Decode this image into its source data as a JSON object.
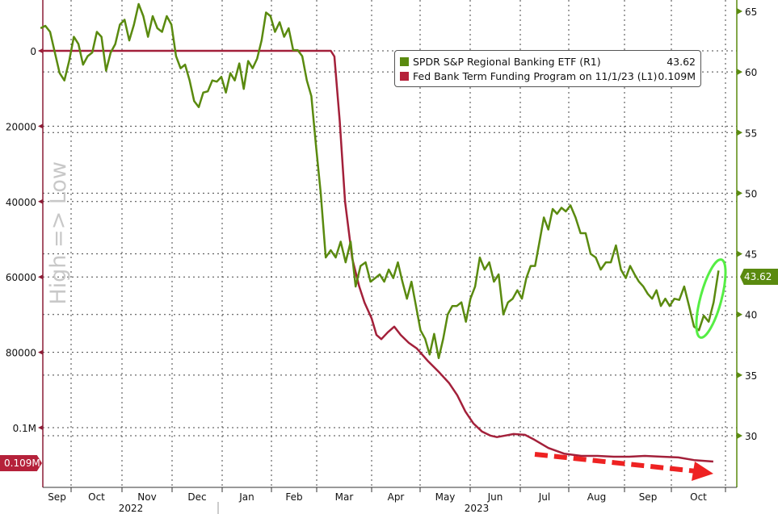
{
  "colors": {
    "etf": "#5a8a0f",
    "btfp": "#a3203a",
    "axis_left": "#8c1d36",
    "axis_right": "#5a8a0f",
    "highlight": "#55ee44",
    "arrow": "#ee2222"
  },
  "legend": [
    {
      "label": "SPDR S&P Regional Banking ETF (R1)",
      "value": "43.62"
    },
    {
      "label": "Fed Bank Term Funding Program on 11/1/23 (L1)",
      "value": "0.109M"
    }
  ],
  "annotation_label": "High => Low",
  "chart_data": {
    "type": "line",
    "title": "",
    "x_months": [
      "Sep",
      "Oct",
      "Nov",
      "Dec",
      "Jan",
      "Feb",
      "Mar",
      "Apr",
      "May",
      "Jun",
      "Jul",
      "Aug",
      "Sep",
      "Oct"
    ],
    "x_years": [
      "2022",
      "2023"
    ],
    "left_axis": {
      "inverted": true,
      "ylim": [
        -12000,
        116000
      ],
      "ticks": [
        {
          "v": 0,
          "label": "0"
        },
        {
          "v": 20000,
          "label": "20000"
        },
        {
          "v": 40000,
          "label": "40000"
        },
        {
          "v": 60000,
          "label": "60000"
        },
        {
          "v": 80000,
          "label": "80000"
        },
        {
          "v": 100000,
          "label": "0.1M"
        }
      ],
      "last_badge": "0.109M"
    },
    "right_axis": {
      "ylim": [
        25.8,
        66
      ],
      "ticks": [
        {
          "v": 65,
          "label": "65"
        },
        {
          "v": 60,
          "label": "60"
        },
        {
          "v": 55,
          "label": "55"
        },
        {
          "v": 50,
          "label": "50"
        },
        {
          "v": 45,
          "label": "45"
        },
        {
          "v": 40,
          "label": "40"
        },
        {
          "v": 35,
          "label": "35"
        },
        {
          "v": 30,
          "label": "30"
        }
      ],
      "last_badge": "43.62"
    },
    "xlim": [
      "2022-09-13",
      "2023-11-08"
    ],
    "grid": true,
    "legend_position": "top-right",
    "series": [
      {
        "name": "SPDR S&P Regional Banking ETF (R1)",
        "axis": "right",
        "start": "2022-09-13",
        "end": "2023-10-28",
        "values": [
          63.6,
          63.8,
          63.3,
          61.6,
          59.9,
          59.3,
          60.9,
          62.9,
          62.3,
          60.6,
          61.3,
          61.6,
          63.3,
          62.9,
          60.1,
          61.6,
          62.3,
          63.9,
          64.3,
          62.6,
          63.9,
          65.6,
          64.6,
          62.9,
          64.6,
          63.6,
          63.3,
          64.6,
          63.9,
          61.3,
          60.3,
          60.6,
          59.3,
          57.6,
          57.1,
          58.3,
          58.4,
          59.3,
          59.2,
          59.6,
          58.3,
          59.9,
          59.3,
          60.7,
          58.6,
          60.9,
          60.3,
          61.1,
          62.6,
          64.9,
          64.6,
          63.3,
          64.1,
          62.9,
          63.6,
          61.8,
          61.8,
          61.3,
          59.3,
          58.0,
          54.0,
          50.0,
          44.7,
          45.3,
          44.7,
          46.0,
          44.3,
          46.0,
          42.3,
          44.0,
          44.3,
          42.7,
          43.0,
          43.3,
          42.7,
          43.7,
          43.0,
          44.3,
          42.7,
          41.3,
          42.7,
          40.7,
          38.7,
          38.0,
          36.7,
          38.4,
          36.4,
          38.0,
          40.0,
          40.7,
          40.7,
          41.0,
          39.4,
          41.3,
          42.3,
          44.7,
          43.7,
          44.3,
          42.7,
          43.3,
          40.0,
          41.0,
          41.3,
          42.0,
          41.3,
          43.0,
          44.0,
          44.0,
          46.0,
          48.0,
          47.0,
          48.7,
          48.3,
          48.8,
          48.5,
          49.0,
          48.0,
          46.7,
          46.7,
          45.0,
          44.7,
          43.7,
          44.3,
          44.3,
          45.7,
          43.7,
          43.0,
          44.0,
          43.3,
          42.7,
          42.3,
          41.7,
          41.3,
          42.0,
          40.7,
          41.3,
          40.7,
          41.3,
          41.2,
          42.3,
          40.7,
          39.0,
          38.7,
          39.9,
          39.4,
          41.0,
          43.62
        ]
      },
      {
        "name": "Fed Bank Term Funding Program on 11/1/23 (L1)",
        "axis": "left",
        "points": [
          [
            "2022-09-13",
            0
          ],
          [
            "2023-03-09",
            0
          ],
          [
            "2023-03-11",
            1500
          ],
          [
            "2023-03-14",
            18600
          ],
          [
            "2023-03-17",
            40000
          ],
          [
            "2023-03-21",
            55000
          ],
          [
            "2023-03-25",
            62500
          ],
          [
            "2023-03-28",
            66800
          ],
          [
            "2023-04-01",
            71000
          ],
          [
            "2023-04-04",
            75400
          ],
          [
            "2023-04-07",
            76500
          ],
          [
            "2023-04-11",
            74700
          ],
          [
            "2023-04-15",
            73200
          ],
          [
            "2023-04-19",
            75400
          ],
          [
            "2023-04-24",
            77500
          ],
          [
            "2023-04-29",
            79000
          ],
          [
            "2023-05-06",
            82400
          ],
          [
            "2023-05-13",
            85400
          ],
          [
            "2023-05-19",
            88200
          ],
          [
            "2023-05-24",
            91400
          ],
          [
            "2023-05-29",
            95700
          ],
          [
            "2023-06-03",
            98900
          ],
          [
            "2023-06-08",
            101000
          ],
          [
            "2023-06-13",
            102100
          ],
          [
            "2023-06-17",
            102500
          ],
          [
            "2023-06-22",
            102100
          ],
          [
            "2023-06-27",
            101700
          ],
          [
            "2023-07-04",
            101900
          ],
          [
            "2023-07-10",
            103200
          ],
          [
            "2023-07-19",
            105400
          ],
          [
            "2023-07-29",
            106900
          ],
          [
            "2023-08-08",
            107500
          ],
          [
            "2023-08-17",
            107500
          ],
          [
            "2023-08-26",
            107700
          ],
          [
            "2023-09-04",
            107700
          ],
          [
            "2023-09-14",
            107500
          ],
          [
            "2023-09-25",
            107700
          ],
          [
            "2023-10-05",
            107900
          ],
          [
            "2023-10-14",
            108600
          ],
          [
            "2023-10-25",
            109000
          ]
        ]
      }
    ]
  }
}
